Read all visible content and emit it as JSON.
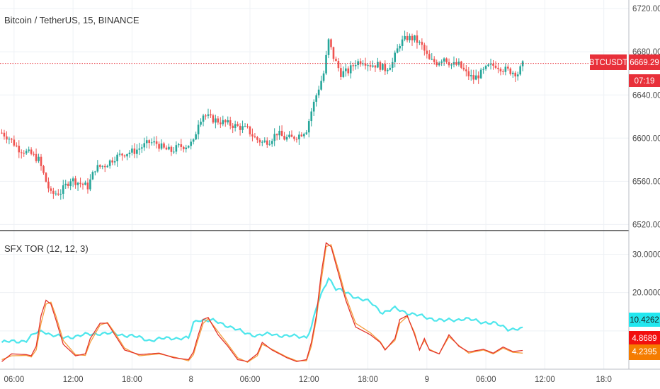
{
  "colors": {
    "up": "#26a69a",
    "down": "#ef5350",
    "price_line": "#e8303a",
    "price_tag_bg": "#e8303a",
    "timer_bg": "#e8303a",
    "grid": "#eef1f5",
    "pane_divider": "#4a4a4a",
    "tor_cyan": "#4ee6ec",
    "tor_red": "#e3342b",
    "tor_orange": "#f59d3c",
    "tag_cyan": "#22e7ef",
    "tag_red": "#f20f0f",
    "tag_orange": "#f57c00"
  },
  "price_pane": {
    "title": "Bitcoin / TetherUS, 15, BINANCE",
    "symbol_tag": "BTCUSDT",
    "price_label": "6669.29",
    "timer": "07:19",
    "y_ticks": [
      "6720.00",
      "6680.00",
      "6640.00",
      "6600.00",
      "6560.00",
      "6520.00"
    ]
  },
  "indicator_pane": {
    "title": "SFX TOR (12, 12, 3)",
    "y_ticks": [
      "30.0000",
      "20.0000"
    ],
    "tags": [
      {
        "text": "10.4262",
        "color_key": "tag_cyan",
        "text_color": "#1a1a1a"
      },
      {
        "text": "4.8689",
        "color_key": "tag_red",
        "text_color": "#ffffff"
      },
      {
        "text": "4.2395",
        "color_key": "tag_orange",
        "text_color": "#ffffff"
      }
    ]
  },
  "x_axis": {
    "ticks": [
      "06:00",
      "12:00",
      "18:00",
      "8",
      "06:00",
      "12:00",
      "18:00",
      "9",
      "06:00",
      "12:00",
      "18:0"
    ]
  },
  "chart_data": [
    {
      "type": "candlestick",
      "title": "Bitcoin / TetherUS, 15, BINANCE",
      "interval_minutes": 15,
      "ylim": [
        6515,
        6728
      ],
      "y_ticks": [
        6720,
        6680,
        6640,
        6600,
        6560,
        6520
      ],
      "last_price": 6669.29,
      "path": [
        [
          0,
          6605
        ],
        [
          3,
          6600
        ],
        [
          7,
          6590
        ],
        [
          12,
          6585
        ],
        [
          15,
          6580
        ],
        [
          18,
          6560
        ],
        [
          20,
          6548
        ],
        [
          24,
          6550
        ],
        [
          28,
          6562
        ],
        [
          32,
          6558
        ],
        [
          35,
          6555
        ],
        [
          38,
          6572
        ],
        [
          42,
          6575
        ],
        [
          46,
          6582
        ],
        [
          50,
          6586
        ],
        [
          54,
          6588
        ],
        [
          57,
          6592
        ],
        [
          60,
          6596
        ],
        [
          63,
          6595
        ],
        [
          66,
          6590
        ],
        [
          69,
          6588
        ],
        [
          72,
          6592
        ],
        [
          75,
          6593
        ],
        [
          78,
          6596
        ],
        [
          80,
          6615
        ],
        [
          82,
          6622
        ],
        [
          85,
          6618
        ],
        [
          88,
          6616
        ],
        [
          91,
          6614
        ],
        [
          94,
          6612
        ],
        [
          97,
          6610
        ],
        [
          100,
          6608
        ],
        [
          103,
          6600
        ],
        [
          106,
          6596
        ],
        [
          109,
          6598
        ],
        [
          112,
          6605
        ],
        [
          115,
          6600
        ],
        [
          118,
          6600
        ],
        [
          121,
          6603
        ],
        [
          124,
          6608
        ],
        [
          126,
          6625
        ],
        [
          128,
          6640
        ],
        [
          131,
          6660
        ],
        [
          133,
          6690
        ],
        [
          135,
          6675
        ],
        [
          138,
          6660
        ],
        [
          141,
          6662
        ],
        [
          144,
          6670
        ],
        [
          147,
          6672
        ],
        [
          150,
          6668
        ],
        [
          153,
          6668
        ],
        [
          156,
          6664
        ],
        [
          159,
          6670
        ],
        [
          162,
          6688
        ],
        [
          165,
          6693
        ],
        [
          168,
          6692
        ],
        [
          171,
          6685
        ],
        [
          174,
          6672
        ],
        [
          177,
          6670
        ],
        [
          180,
          6675
        ],
        [
          183,
          6668
        ],
        [
          186,
          6668
        ],
        [
          189,
          6660
        ],
        [
          192,
          6655
        ],
        [
          195,
          6660
        ],
        [
          198,
          6666
        ],
        [
          201,
          6668
        ],
        [
          204,
          6664
        ],
        [
          207,
          6662
        ],
        [
          210,
          6660
        ],
        [
          212,
          6668
        ]
      ]
    },
    {
      "type": "line",
      "title": "SFX TOR (12, 12, 3)",
      "ylim": [
        0,
        36
      ],
      "y_ticks": [
        30,
        20
      ],
      "series": [
        {
          "color_key": "tor_cyan",
          "last_value": 10.4262,
          "points": [
            [
              0,
              7
            ],
            [
              10,
              7.5
            ],
            [
              14,
              9.5
            ],
            [
              17,
              10
            ],
            [
              20,
              9
            ],
            [
              25,
              8.2
            ],
            [
              32,
              8.8
            ],
            [
              40,
              9.4
            ],
            [
              46,
              9.2
            ],
            [
              52,
              8.8
            ],
            [
              60,
              7.6
            ],
            [
              70,
              8.2
            ],
            [
              76,
              8
            ],
            [
              78,
              12
            ],
            [
              80,
              13
            ],
            [
              86,
              12.6
            ],
            [
              92,
              11.4
            ],
            [
              98,
              9.6
            ],
            [
              104,
              8.8
            ],
            [
              110,
              9.2
            ],
            [
              116,
              8.6
            ],
            [
              120,
              8.6
            ],
            [
              124,
              8.5
            ],
            [
              126,
              10.8
            ],
            [
              128,
              16
            ],
            [
              131,
              21
            ],
            [
              133,
              24
            ],
            [
              136,
              21
            ],
            [
              142,
              19.4
            ],
            [
              150,
              17.4
            ],
            [
              155,
              14.8
            ],
            [
              160,
              15.8
            ],
            [
              166,
              14.6
            ],
            [
              172,
              13.6
            ],
            [
              180,
              12.6
            ],
            [
              188,
              13.2
            ],
            [
              194,
              12.5
            ],
            [
              200,
              12
            ],
            [
              206,
              10.6
            ],
            [
              212,
              10.4
            ]
          ]
        },
        {
          "color_key": "tor_red",
          "last_value": 4.8689,
          "points": [
            [
              0,
              2
            ],
            [
              4,
              4
            ],
            [
              10,
              3.8
            ],
            [
              12,
              3.5
            ],
            [
              14,
              6
            ],
            [
              16,
              14
            ],
            [
              18,
              18
            ],
            [
              20,
              17
            ],
            [
              22,
              13
            ],
            [
              25,
              6.5
            ],
            [
              30,
              3.5
            ],
            [
              34,
              4
            ],
            [
              36,
              8
            ],
            [
              40,
              12
            ],
            [
              43,
              12
            ],
            [
              46,
              9
            ],
            [
              50,
              5
            ],
            [
              56,
              3.8
            ],
            [
              64,
              4.2
            ],
            [
              70,
              3
            ],
            [
              76,
              2.5
            ],
            [
              78,
              4.5
            ],
            [
              80,
              9
            ],
            [
              82,
              13
            ],
            [
              84,
              13.5
            ],
            [
              88,
              9
            ],
            [
              92,
              6
            ],
            [
              96,
              2.5
            ],
            [
              100,
              2
            ],
            [
              104,
              4
            ],
            [
              106,
              7
            ],
            [
              110,
              5
            ],
            [
              116,
              3
            ],
            [
              120,
              2
            ],
            [
              124,
              2.5
            ],
            [
              126,
              7
            ],
            [
              128,
              14
            ],
            [
              130,
              25
            ],
            [
              132,
              33
            ],
            [
              134,
              32
            ],
            [
              137,
              25
            ],
            [
              140,
              18
            ],
            [
              144,
              11
            ],
            [
              150,
              9
            ],
            [
              154,
              7
            ],
            [
              156,
              5
            ],
            [
              160,
              8
            ],
            [
              162,
              13
            ],
            [
              165,
              14
            ],
            [
              168,
              9
            ],
            [
              170,
              5
            ],
            [
              172,
              8
            ],
            [
              174,
              5
            ],
            [
              178,
              4
            ],
            [
              182,
              9
            ],
            [
              186,
              6
            ],
            [
              190,
              4.5
            ],
            [
              196,
              5.2
            ],
            [
              200,
              4.2
            ],
            [
              204,
              5.8
            ],
            [
              208,
              4.6
            ],
            [
              212,
              4.9
            ]
          ]
        },
        {
          "color_key": "tor_orange",
          "last_value": 4.2395,
          "points": [
            [
              0,
              2.5
            ],
            [
              4,
              3.5
            ],
            [
              10,
              3.6
            ],
            [
              12,
              3.2
            ],
            [
              14,
              5
            ],
            [
              16,
              12
            ],
            [
              18,
              17
            ],
            [
              20,
              17.5
            ],
            [
              22,
              14
            ],
            [
              25,
              7.5
            ],
            [
              30,
              3.8
            ],
            [
              34,
              3.6
            ],
            [
              36,
              7
            ],
            [
              40,
              11.5
            ],
            [
              43,
              12.2
            ],
            [
              46,
              9.5
            ],
            [
              50,
              5.5
            ],
            [
              56,
              3.5
            ],
            [
              64,
              4
            ],
            [
              70,
              3.2
            ],
            [
              76,
              2.2
            ],
            [
              78,
              3.8
            ],
            [
              80,
              8
            ],
            [
              82,
              12
            ],
            [
              84,
              13.2
            ],
            [
              88,
              9.8
            ],
            [
              92,
              6.5
            ],
            [
              96,
              3
            ],
            [
              100,
              1.8
            ],
            [
              104,
              3.5
            ],
            [
              106,
              6.5
            ],
            [
              110,
              5.2
            ],
            [
              116,
              3.2
            ],
            [
              120,
              2.2
            ],
            [
              124,
              2.2
            ],
            [
              126,
              6
            ],
            [
              128,
              13
            ],
            [
              130,
              23
            ],
            [
              132,
              32
            ],
            [
              134,
              32.5
            ],
            [
              137,
              26
            ],
            [
              140,
              19
            ],
            [
              144,
              12
            ],
            [
              150,
              9.5
            ],
            [
              154,
              7.2
            ],
            [
              156,
              5.2
            ],
            [
              160,
              7.5
            ],
            [
              162,
              12
            ],
            [
              165,
              13.8
            ],
            [
              168,
              9.5
            ],
            [
              170,
              5.2
            ],
            [
              172,
              7.5
            ],
            [
              174,
              5.2
            ],
            [
              178,
              4
            ],
            [
              182,
              8.5
            ],
            [
              186,
              6.2
            ],
            [
              190,
              4.2
            ],
            [
              196,
              5
            ],
            [
              200,
              4
            ],
            [
              204,
              5.5
            ],
            [
              208,
              4.4
            ],
            [
              212,
              4.2
            ]
          ]
        }
      ]
    }
  ]
}
